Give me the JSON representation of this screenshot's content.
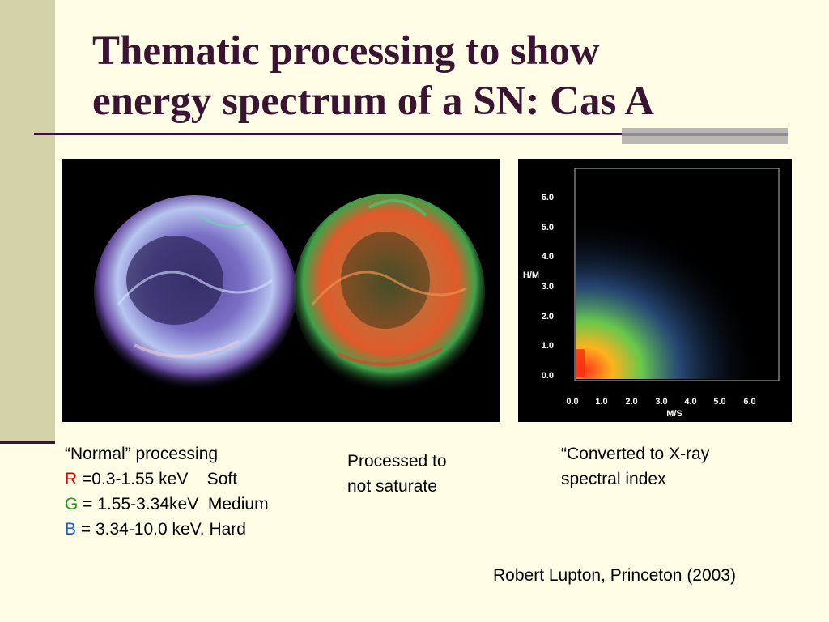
{
  "slide": {
    "title_line1": "Thematic processing to show",
    "title_line2": "energy spectrum of a SN: Cas A"
  },
  "captions": {
    "normal": {
      "heading": "“Normal” processing",
      "r_key": "R",
      "r_text": " =0.3-1.55 keV    Soft",
      "g_key": "G",
      "g_text": " = 1.55-3.34keV  Medium",
      "b_key": "B",
      "b_text": " = 3.34-10.0 keV. Hard"
    },
    "processed": {
      "line1": "Processed to",
      "line2": "not saturate"
    },
    "converted": {
      "line1": "“Converted to X-ray",
      "line2": "spectral index"
    }
  },
  "credit": "Robert Lupton, Princeton (2003)",
  "scatter_plot": {
    "xlabel": "M/S",
    "ylabel": "H/M",
    "x_ticks": [
      "0.0",
      "1.0",
      "2.0",
      "3.0",
      "4.0",
      "5.0",
      "6.0"
    ],
    "y_ticks": [
      "0.0",
      "1.0",
      "2.0",
      "3.0",
      "4.0",
      "5.0",
      "6.0"
    ]
  },
  "colors": {
    "title": "#3b1434",
    "background": "#fffde6",
    "accent_bar": "#d3d1a7",
    "r_label": "#e00000",
    "g_label": "#1aa01a",
    "b_label": "#1a5ecc"
  }
}
